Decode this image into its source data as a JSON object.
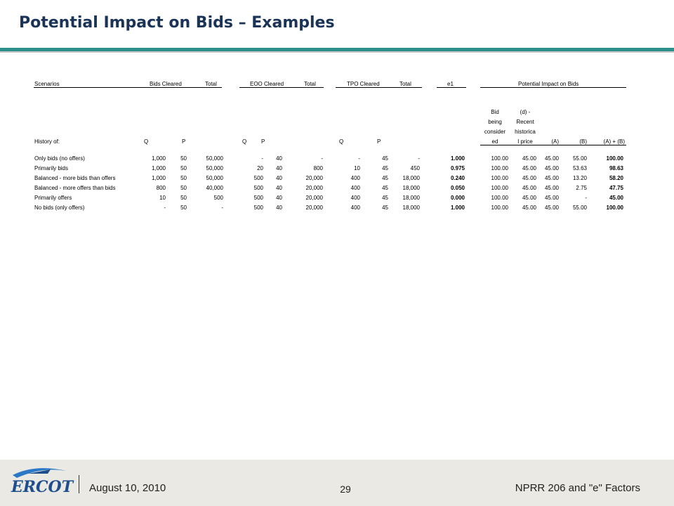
{
  "page": {
    "title": "Potential Impact on Bids – Examples"
  },
  "table": {
    "top_headers": {
      "scenarios": "Scenarios",
      "bids_cleared": "Bids Cleared",
      "total1": "Total",
      "eoo_cleared": "EOO Cleared",
      "total2": "Total",
      "tpo_cleared": "TPO Cleared",
      "total3": "Total",
      "e1": "e1",
      "potential": "Potential Impact on Bids"
    },
    "sub_headers": {
      "history": "History of:",
      "q1": "Q",
      "p1": "P",
      "q2": "Q",
      "p2": "P",
      "q3": "Q",
      "p3": "P",
      "bid_l1": "Bid",
      "bid_l2": "being",
      "bid_l3": "consider",
      "bid_l4": "ed",
      "d_l1": "(d) -",
      "d_l2": "Recent",
      "d_l3": "historica",
      "d_l4": "l price",
      "a": "(A)",
      "bcol": "(B)",
      "ab": "(A) + (B)"
    },
    "rows": [
      {
        "name": "Only bids (no offers)",
        "bq": "1,000",
        "bp": "50",
        "bt": "50,000",
        "eq": "-",
        "ep": "40",
        "et": "-",
        "tq": "-",
        "tp": "45",
        "tt": "-",
        "e1": "1.000",
        "bid": "100.00",
        "d": "45.00",
        "a": "45.00",
        "b": "55.00",
        "ab": "100.00"
      },
      {
        "name": "Primarily bids",
        "bq": "1,000",
        "bp": "50",
        "bt": "50,000",
        "eq": "20",
        "ep": "40",
        "et": "800",
        "tq": "10",
        "tp": "45",
        "tt": "450",
        "e1": "0.975",
        "bid": "100.00",
        "d": "45.00",
        "a": "45.00",
        "b": "53.63",
        "ab": "98.63"
      },
      {
        "name": "Balanced - more bids than offers",
        "bq": "1,000",
        "bp": "50",
        "bt": "50,000",
        "eq": "500",
        "ep": "40",
        "et": "20,000",
        "tq": "400",
        "tp": "45",
        "tt": "18,000",
        "e1": "0.240",
        "bid": "100.00",
        "d": "45.00",
        "a": "45.00",
        "b": "13.20",
        "ab": "58.20"
      },
      {
        "name": "Balanced - more offers than bids",
        "bq": "800",
        "bp": "50",
        "bt": "40,000",
        "eq": "500",
        "ep": "40",
        "et": "20,000",
        "tq": "400",
        "tp": "45",
        "tt": "18,000",
        "e1": "0.050",
        "bid": "100.00",
        "d": "45.00",
        "a": "45.00",
        "b": "2.75",
        "ab": "47.75"
      },
      {
        "name": "Primarily offers",
        "bq": "10",
        "bp": "50",
        "bt": "500",
        "eq": "500",
        "ep": "40",
        "et": "20,000",
        "tq": "400",
        "tp": "45",
        "tt": "18,000",
        "e1": "0.000",
        "bid": "100.00",
        "d": "45.00",
        "a": "45.00",
        "b": "-",
        "ab": "45.00"
      },
      {
        "name": "No bids (only offers)",
        "bq": "-",
        "bp": "50",
        "bt": "-",
        "eq": "500",
        "ep": "40",
        "et": "20,000",
        "tq": "400",
        "tp": "45",
        "tt": "18,000",
        "e1": "1.000",
        "bid": "100.00",
        "d": "45.00",
        "a": "45.00",
        "b": "55.00",
        "ab": "100.00"
      }
    ]
  },
  "footer": {
    "logo_text": "ERCOT",
    "date": "August 10, 2010",
    "page_number": "29",
    "right_text": "NPRR 206 and \"e\" Factors"
  },
  "colors": {
    "title": "#1a3356",
    "accent_rule": "#2f8f8a",
    "footer_bg": "#ebe9e3",
    "logo_blue": "#1f4e8c"
  }
}
